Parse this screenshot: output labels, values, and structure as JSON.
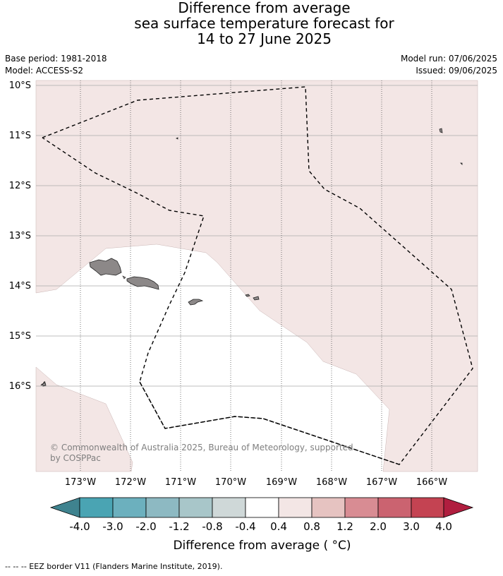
{
  "title": {
    "line1": "Difference from average",
    "line2": "sea surface temperature forecast for",
    "line3": "14 to 27 June 2025"
  },
  "meta": {
    "base_period": "Base period: 1981-2018",
    "model": "Model: ACCESS-S2",
    "model_run": "Model run: 07/06/2025",
    "issued": "Issued: 09/06/2025"
  },
  "map": {
    "lat_labels": [
      "10°S",
      "11°S",
      "12°S",
      "13°S",
      "14°S",
      "15°S",
      "16°S"
    ],
    "lon_labels": [
      "173°W",
      "172°W",
      "171°W",
      "170°W",
      "169°W",
      "168°W",
      "167°W",
      "166°W"
    ],
    "colors": {
      "ocean_anomaly_0_4_to_0_8": "#f3e6e5",
      "ocean_neutral": "#ffffff",
      "land": "#8c8888",
      "gridline": "#999999",
      "eez_border": "#000000"
    },
    "copyright": "© Commonwealth of Australia 2025, Bureau of Meteorology, supported by COSPPac"
  },
  "colorbar": {
    "tick_labels": [
      "-4.0",
      "-3.0",
      "-2.0",
      "-1.2",
      "-0.8",
      "-0.4",
      "0.4",
      "0.8",
      "1.2",
      "2.0",
      "3.0",
      "4.0"
    ],
    "colors": [
      "#3f838f",
      "#4aa4b3",
      "#6cb0be",
      "#8db9c2",
      "#a8c6c9",
      "#cfd8d8",
      "#ffffff",
      "#f3e6e5",
      "#e6c3c1",
      "#d88c93",
      "#cb6370",
      "#c44352",
      "#b01e3f"
    ],
    "title": "Difference from average ( °C)"
  },
  "footnote": "--  --  -- EEZ border V11 (Flanders Marine Institute, 2019)."
}
